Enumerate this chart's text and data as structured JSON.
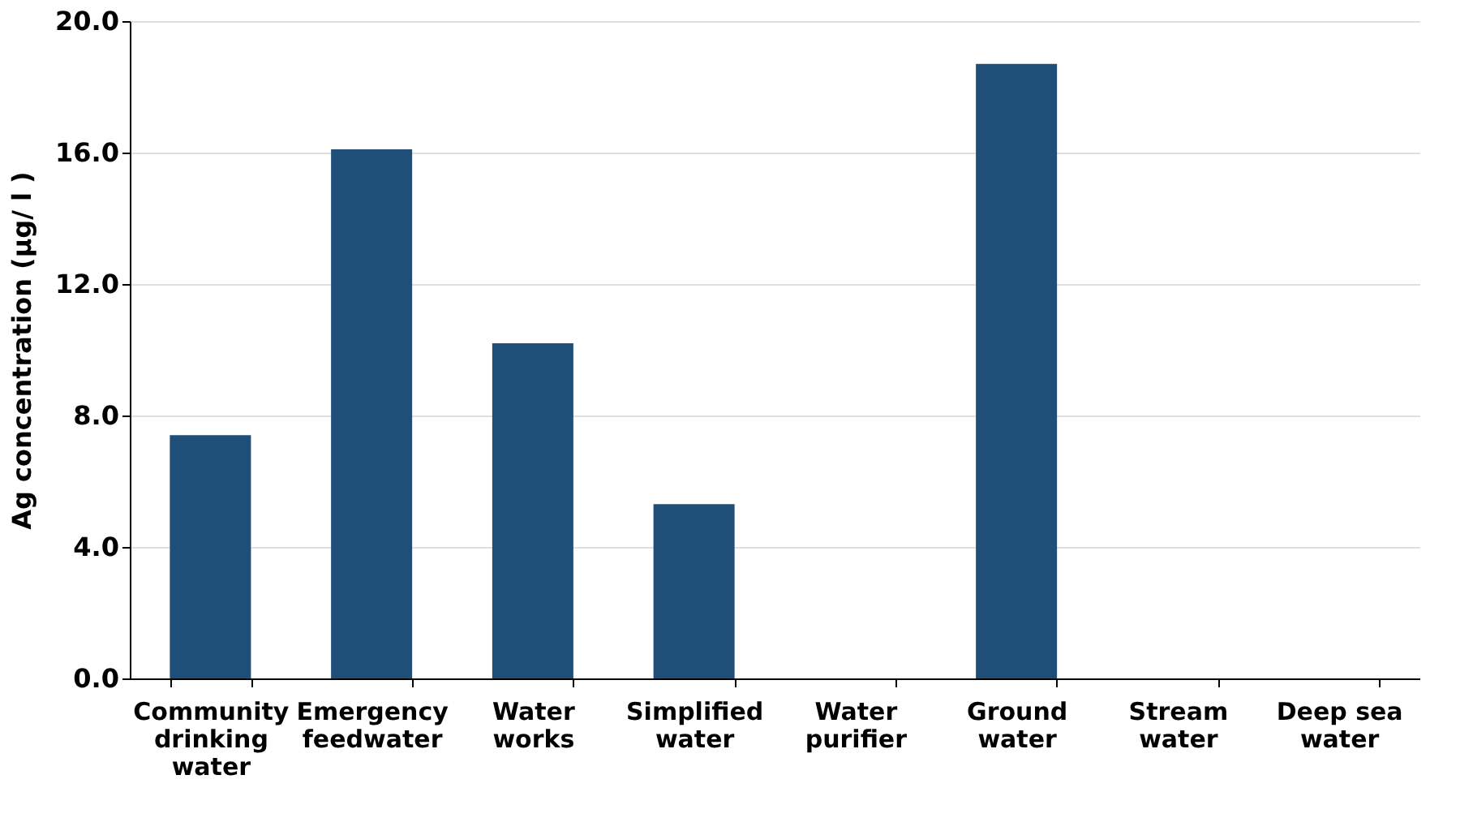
{
  "chart_data": {
    "type": "bar",
    "ylabel": "Ag concentration (μg/ l )",
    "categories": [
      "Community drinking water",
      "Emergency feedwater",
      "Water works",
      "Simplified water",
      "Water purifier",
      "Ground water",
      "Stream water",
      "Deep sea water"
    ],
    "values": [
      7.4,
      16.1,
      10.2,
      5.3,
      0,
      18.7,
      0,
      0
    ],
    "color": "#1f4e79",
    "ylim": [
      0,
      20
    ],
    "yticks": [
      {
        "value": 0,
        "label": "0.0"
      },
      {
        "value": 4,
        "label": "4.0"
      },
      {
        "value": 8,
        "label": "8.0"
      },
      {
        "value": 12,
        "label": "12.0"
      },
      {
        "value": 16,
        "label": "16.0"
      },
      {
        "value": 20,
        "label": "20.0"
      }
    ],
    "grid": "y"
  }
}
